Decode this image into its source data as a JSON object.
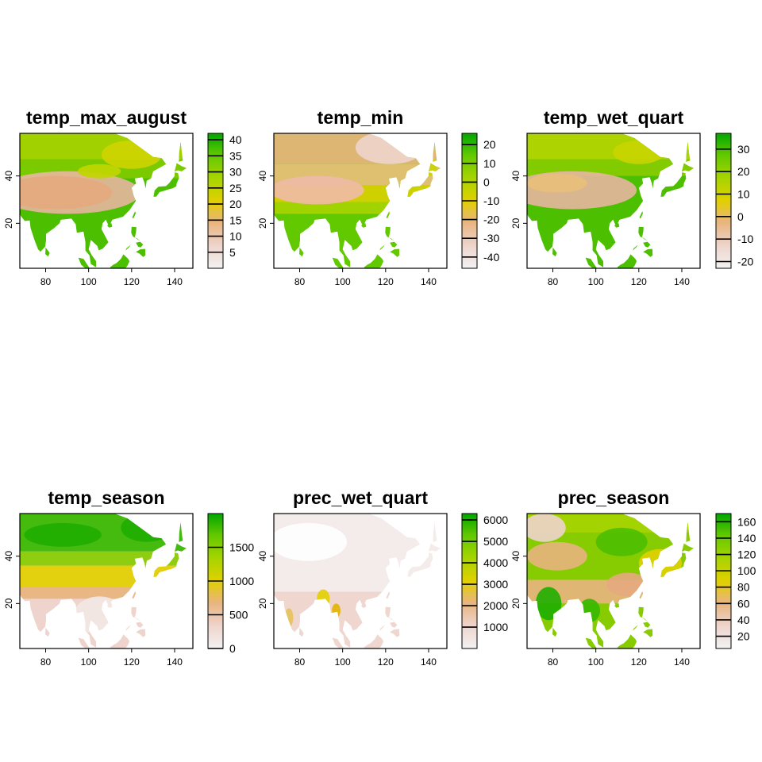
{
  "panels": [
    {
      "title": "temp_max_august",
      "x_ticks": [
        "80",
        "100",
        "120",
        "140"
      ],
      "y_ticks": [
        "20",
        "40"
      ],
      "legend": {
        "labels": [
          "5",
          "10",
          "15",
          "20",
          "25",
          "30",
          "35",
          "40"
        ],
        "range": [
          0,
          42
        ]
      }
    },
    {
      "title": "temp_min",
      "x_ticks": [
        "80",
        "100",
        "120",
        "140"
      ],
      "y_ticks": [
        "20",
        "40"
      ],
      "legend": {
        "labels": [
          "-40",
          "-30",
          "-20",
          "-10",
          "0",
          "10",
          "20"
        ],
        "range": [
          -46,
          26
        ]
      }
    },
    {
      "title": "temp_wet_quart",
      "x_ticks": [
        "80",
        "100",
        "120",
        "140"
      ],
      "y_ticks": [
        "20",
        "40"
      ],
      "legend": {
        "labels": [
          "-20",
          "-10",
          "0",
          "10",
          "20",
          "30"
        ],
        "range": [
          -23,
          37
        ]
      }
    },
    {
      "title": "temp_season",
      "x_ticks": [
        "80",
        "100",
        "120",
        "140"
      ],
      "y_ticks": [
        "20",
        "40"
      ],
      "legend": {
        "labels": [
          "0",
          "500",
          "1000",
          "1500"
        ],
        "range": [
          0,
          2000
        ]
      }
    },
    {
      "title": "prec_wet_quart",
      "x_ticks": [
        "80",
        "100",
        "120",
        "140"
      ],
      "y_ticks": [
        "20",
        "40"
      ],
      "legend": {
        "labels": [
          "1000",
          "2000",
          "3000",
          "4000",
          "5000",
          "6000"
        ],
        "range": [
          0,
          6300
        ]
      }
    },
    {
      "title": "prec_season",
      "x_ticks": [
        "80",
        "100",
        "120",
        "140"
      ],
      "y_ticks": [
        "20",
        "40"
      ],
      "legend": {
        "labels": [
          "20",
          "40",
          "60",
          "80",
          "100",
          "120",
          "140",
          "160"
        ],
        "range": [
          5,
          170
        ]
      }
    }
  ],
  "colors": {
    "ramp": [
      "#f2f2f2",
      "#eed4cc",
      "#e8b47e",
      "#e2d000",
      "#a6d400",
      "#63c800",
      "#00a600"
    ]
  }
}
